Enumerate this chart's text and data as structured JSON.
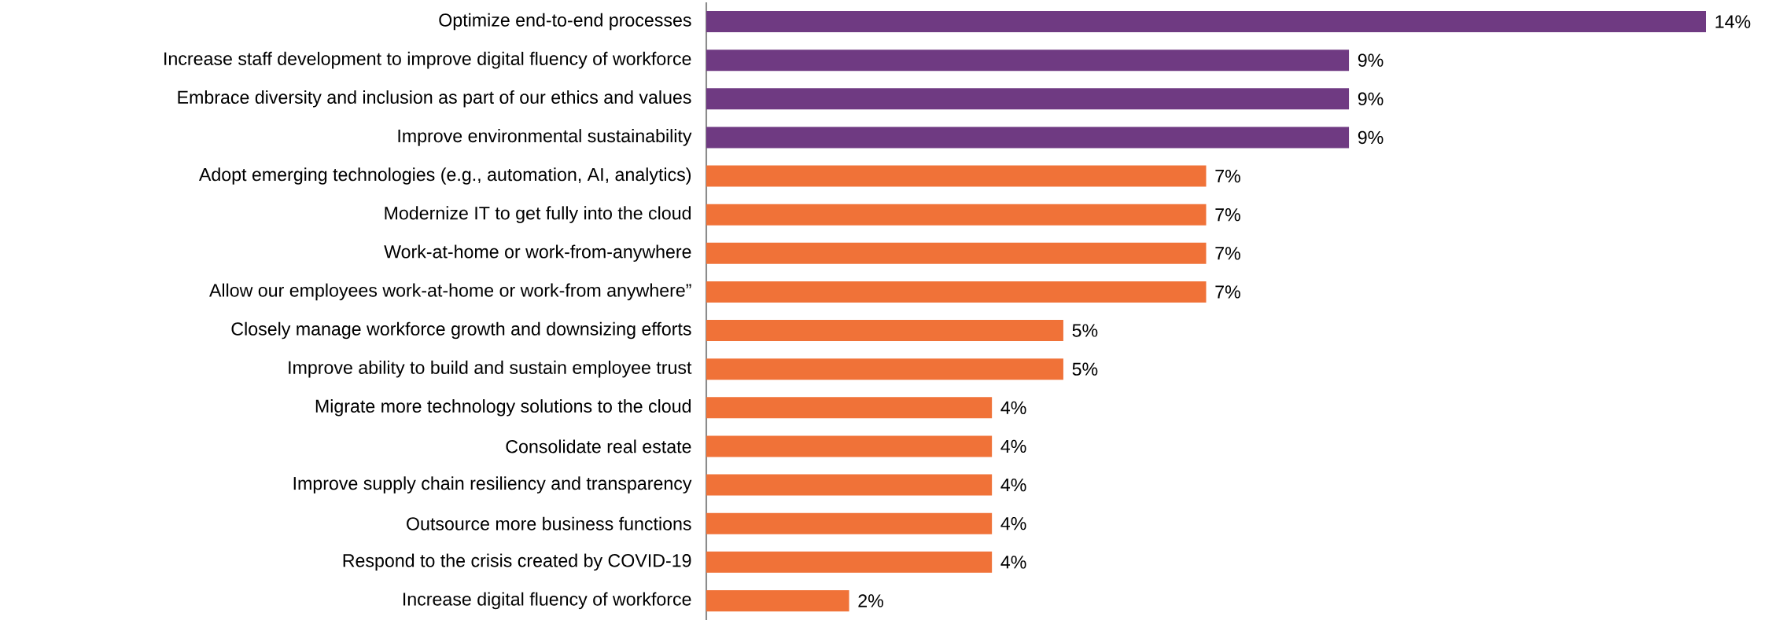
{
  "chart_data": {
    "type": "bar",
    "orientation": "horizontal",
    "categories": [
      "Optimize end-to-end processes",
      "Increase staff development to improve digital fluency of workforce",
      "Embrace diversity and inclusion as part of our ethics and values",
      "Improve environmental sustainability",
      "Adopt emerging technologies (e.g., automation, AI, analytics)",
      "Modernize IT to get fully into the cloud",
      "Work-at-home or work-from-anywhere",
      "Allow our employees work-at-home or work-from anywhere”",
      "Closely manage workforce growth and downsizing efforts",
      "Improve ability to build and sustain employee trust",
      "Migrate more technology solutions to the cloud",
      "Consolidate real estate",
      "Improve supply chain resiliency and transparency",
      "Outsource more business functions",
      "Respond to the crisis created by COVID-19",
      "Increase digital fluency of workforce"
    ],
    "values": [
      14,
      9,
      9,
      9,
      7,
      7,
      7,
      7,
      5,
      5,
      4,
      4,
      4,
      4,
      4,
      2
    ],
    "colors": [
      "#6f3a82",
      "#6f3a82",
      "#6f3a82",
      "#6f3a82",
      "#f07238",
      "#f07238",
      "#f07238",
      "#f07238",
      "#f07238",
      "#f07238",
      "#f07238",
      "#f07238",
      "#f07238",
      "#f07238",
      "#f07238",
      "#f07238"
    ],
    "value_labels": [
      "14%",
      "9%",
      "9%",
      "9%",
      "7%",
      "7%",
      "7%",
      "7%",
      "5%",
      "5%",
      "4%",
      "4%",
      "4%",
      "4%",
      "4%",
      "2%"
    ]
  }
}
